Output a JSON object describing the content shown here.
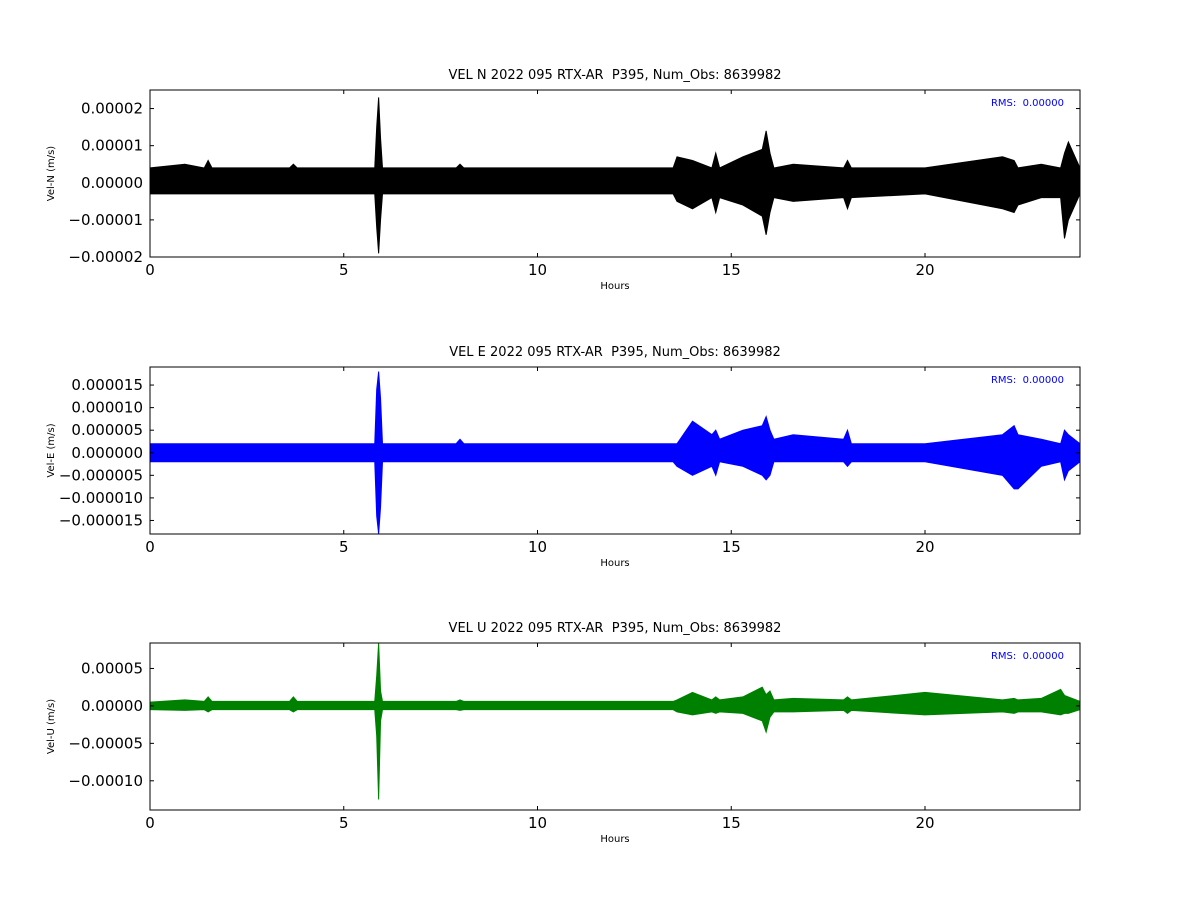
{
  "chart_data": [
    {
      "type": "range",
      "title": "VEL N 2022 095 RTX-AR  P395, Num_Obs: 8639982",
      "xlabel": "Hours",
      "ylabel": "Vel-N (m/s)",
      "annotation": "RMS:  0.00000",
      "color": "#000000",
      "annotation_color": "#0000ff",
      "xlim": [
        0,
        24
      ],
      "xticks": [
        0,
        5,
        10,
        15,
        20
      ],
      "ylim": [
        -2e-05,
        2.5e-05
      ],
      "yticks": [
        {
          "value": 2e-05,
          "label": "0.00002"
        },
        {
          "value": 1e-05,
          "label": "0.00001"
        },
        {
          "value": 0,
          "label": "0.00000"
        },
        {
          "value": -1e-05,
          "label": "−0.00001"
        },
        {
          "value": -2e-05,
          "label": "−0.00002"
        }
      ],
      "x": [
        0,
        0.9,
        1.4,
        1.5,
        1.6,
        3.6,
        3.7,
        3.8,
        5.8,
        5.85,
        5.9,
        5.95,
        6.0,
        7.9,
        8.0,
        8.1,
        10,
        12.3,
        13.5,
        13.6,
        14.0,
        14.5,
        14.6,
        14.7,
        15.3,
        15.8,
        15.9,
        16.0,
        16.1,
        16.6,
        17.9,
        18.0,
        18.1,
        20,
        22,
        22.3,
        22.4,
        23,
        23.5,
        23.6,
        23.7,
        24
      ],
      "high": [
        4e-06,
        5e-06,
        4e-06,
        6e-06,
        4e-06,
        4e-06,
        5e-06,
        4e-06,
        4e-06,
        1.5e-05,
        2.3e-05,
        1.2e-05,
        4e-06,
        4e-06,
        5e-06,
        4e-06,
        4e-06,
        4e-06,
        4e-06,
        7e-06,
        6e-06,
        4e-06,
        8e-06,
        4e-06,
        7e-06,
        9e-06,
        1.4e-05,
        8e-06,
        4e-06,
        5e-06,
        4e-06,
        6e-06,
        4e-06,
        4e-06,
        7e-06,
        6e-06,
        4e-06,
        5e-06,
        4e-06,
        8e-06,
        1.1e-05,
        4e-06
      ],
      "low": [
        -3e-06,
        -3e-06,
        -3e-06,
        -3e-06,
        -3e-06,
        -3e-06,
        -3e-06,
        -3e-06,
        -3e-06,
        -1.2e-05,
        -1.9e-05,
        -1e-05,
        -3e-06,
        -3e-06,
        -3e-06,
        -3e-06,
        -3e-06,
        -3e-06,
        -3e-06,
        -5e-06,
        -7e-06,
        -4e-06,
        -8e-06,
        -4e-06,
        -6e-06,
        -9e-06,
        -1.4e-05,
        -8e-06,
        -4e-06,
        -5e-06,
        -4e-06,
        -7e-06,
        -4e-06,
        -3e-06,
        -7e-06,
        -8e-06,
        -6e-06,
        -4e-06,
        -4e-06,
        -1.5e-05,
        -1e-05,
        -3e-06
      ]
    },
    {
      "type": "range",
      "title": "VEL E 2022 095 RTX-AR  P395, Num_Obs: 8639982",
      "xlabel": "Hours",
      "ylabel": "Vel-E (m/s)",
      "annotation": "RMS:  0.00000",
      "color": "#0000ff",
      "annotation_color": "#0000ff",
      "xlim": [
        0,
        24
      ],
      "xticks": [
        0,
        5,
        10,
        15,
        20
      ],
      "ylim": [
        -1.8e-05,
        1.9e-05
      ],
      "yticks": [
        {
          "value": 1.5e-05,
          "label": "0.000015"
        },
        {
          "value": 1e-05,
          "label": "0.000010"
        },
        {
          "value": 5e-06,
          "label": "0.000005"
        },
        {
          "value": 0,
          "label": "0.000000"
        },
        {
          "value": -5e-06,
          "label": "−0.000005"
        },
        {
          "value": -1e-05,
          "label": "−0.000010"
        },
        {
          "value": -1.5e-05,
          "label": "−0.000015"
        }
      ],
      "x": [
        0,
        0.9,
        1.4,
        1.5,
        1.6,
        3.6,
        3.7,
        3.8,
        5.8,
        5.85,
        5.9,
        5.95,
        6.0,
        7.9,
        8.0,
        8.1,
        10,
        12.3,
        13.5,
        13.6,
        14.0,
        14.5,
        14.6,
        14.7,
        15.3,
        15.8,
        15.9,
        16.0,
        16.1,
        16.6,
        17.9,
        18.0,
        18.1,
        20,
        22,
        22.3,
        22.4,
        23,
        23.5,
        23.6,
        23.7,
        24
      ],
      "high": [
        2e-06,
        2e-06,
        2e-06,
        2e-06,
        2e-06,
        2e-06,
        2e-06,
        2e-06,
        2e-06,
        1.4e-05,
        1.8e-05,
        1.2e-05,
        2e-06,
        2e-06,
        3e-06,
        2e-06,
        2e-06,
        2e-06,
        2e-06,
        2e-06,
        7e-06,
        4e-06,
        5e-06,
        3e-06,
        5e-06,
        6e-06,
        8e-06,
        5e-06,
        3e-06,
        4e-06,
        3e-06,
        5e-06,
        2e-06,
        2e-06,
        4e-06,
        6e-06,
        4e-06,
        3e-06,
        2e-06,
        5e-06,
        4e-06,
        2e-06
      ],
      "low": [
        -2e-06,
        -2e-06,
        -2e-06,
        -2e-06,
        -2e-06,
        -2e-06,
        -2e-06,
        -2e-06,
        -2e-06,
        -1.4e-05,
        -1.8e-05,
        -1.2e-05,
        -2e-06,
        -2e-06,
        -2e-06,
        -2e-06,
        -2e-06,
        -2e-06,
        -2e-06,
        -3e-06,
        -5e-06,
        -3e-06,
        -5e-06,
        -2e-06,
        -3e-06,
        -5e-06,
        -6e-06,
        -5e-06,
        -2e-06,
        -2e-06,
        -2e-06,
        -3e-06,
        -2e-06,
        -2e-06,
        -5e-06,
        -8e-06,
        -8e-06,
        -3e-06,
        -2e-06,
        -6e-06,
        -4e-06,
        -2e-06
      ]
    },
    {
      "type": "range",
      "title": "VEL U 2022 095 RTX-AR  P395, Num_Obs: 8639982",
      "xlabel": "Hours",
      "ylabel": "Vel-U (m/s)",
      "annotation": "RMS:  0.00000",
      "color": "#008000",
      "annotation_color": "#0000ff",
      "xlim": [
        0,
        24
      ],
      "xticks": [
        0,
        5,
        10,
        15,
        20
      ],
      "ylim": [
        -0.000139,
        8.4e-05
      ],
      "yticks": [
        {
          "value": 5e-05,
          "label": "0.00005"
        },
        {
          "value": 0,
          "label": "0.00000"
        },
        {
          "value": -5e-05,
          "label": "−0.00005"
        },
        {
          "value": -0.0001,
          "label": "−0.00010"
        }
      ],
      "x": [
        0,
        0.9,
        1.4,
        1.5,
        1.6,
        3.6,
        3.7,
        3.8,
        5.8,
        5.85,
        5.9,
        5.95,
        6.0,
        7.9,
        8.0,
        8.1,
        10,
        12.3,
        13.5,
        13.6,
        14.0,
        14.5,
        14.6,
        14.7,
        15.3,
        15.8,
        15.9,
        16.0,
        16.1,
        16.6,
        17.9,
        18.0,
        18.1,
        20,
        22,
        22.3,
        22.4,
        23,
        23.5,
        23.6,
        23.7,
        24
      ],
      "high": [
        5e-06,
        8e-06,
        6e-06,
        1.2e-05,
        6e-06,
        6e-06,
        1.2e-05,
        6e-06,
        6e-06,
        4e-05,
        8.4e-05,
        2e-05,
        6e-06,
        6e-06,
        8e-06,
        6e-06,
        6e-06,
        6e-06,
        6e-06,
        8e-06,
        1.8e-05,
        8e-06,
        1.2e-05,
        8e-06,
        1.2e-05,
        2.5e-05,
        1.5e-05,
        2e-05,
        8e-06,
        1e-05,
        8e-06,
        1.2e-05,
        8e-06,
        1.8e-05,
        8e-06,
        1e-05,
        8e-06,
        1e-05,
        2.2e-05,
        1.4e-05,
        1.2e-05,
        6e-06
      ],
      "low": [
        -5e-06,
        -6e-06,
        -5e-06,
        -8e-06,
        -5e-06,
        -5e-06,
        -8e-06,
        -5e-06,
        -5e-06,
        -4e-05,
        -0.000125,
        -2e-05,
        -5e-06,
        -5e-06,
        -6e-06,
        -5e-06,
        -5e-06,
        -5e-06,
        -5e-06,
        -8e-06,
        -1.2e-05,
        -8e-06,
        -1e-05,
        -8e-06,
        -1e-05,
        -2e-05,
        -3.5e-05,
        -1.5e-05,
        -8e-06,
        -8e-06,
        -6e-06,
        -1e-05,
        -6e-06,
        -1.2e-05,
        -8e-06,
        -1e-05,
        -8e-06,
        -8e-06,
        -1.2e-05,
        -1e-05,
        -1e-05,
        -5e-06
      ]
    }
  ]
}
